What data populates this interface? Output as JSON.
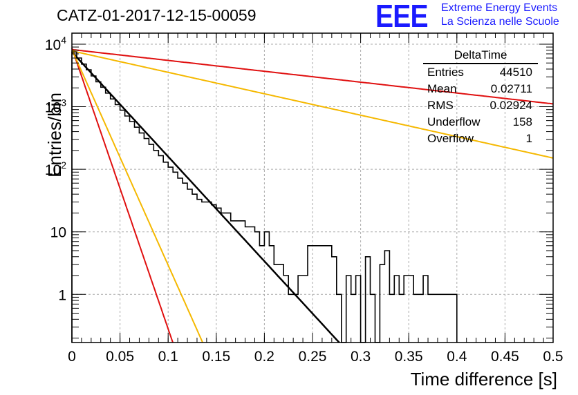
{
  "title": "CATZ-01-2017-12-15-00059",
  "logo": {
    "mark": "EEE",
    "line1": "Extreme Energy Events",
    "line2": "La Scienza nelle Scuole",
    "color": "#1a1aff"
  },
  "stats_box": {
    "name": "DeltaTime",
    "rows": [
      {
        "label": "Entries",
        "value": "44510"
      },
      {
        "label": "Mean",
        "value": "0.02711"
      },
      {
        "label": "RMS",
        "value": "0.02924"
      },
      {
        "label": "Underflow",
        "value": "158"
      },
      {
        "label": "Overflow",
        "value": "1"
      }
    ]
  },
  "chart_data": {
    "type": "line",
    "title": "CATZ-01-2017-12-15-00059",
    "xlabel": "Time difference [s]",
    "ylabel": "Entries/bin",
    "xlim": [
      0,
      0.5
    ],
    "ylim": [
      0.17,
      15000
    ],
    "yscale": "log",
    "grid": true,
    "x_ticks": [
      "0",
      "0.05",
      "0.1",
      "0.15",
      "0.2",
      "0.25",
      "0.3",
      "0.35",
      "0.4",
      "0.45",
      "0.5"
    ],
    "y_ticks": [
      {
        "value": 1,
        "base": "1",
        "exp": ""
      },
      {
        "value": 10,
        "base": "10",
        "exp": ""
      },
      {
        "value": 100,
        "base": "10",
        "exp": "2"
      },
      {
        "value": 1000,
        "base": "10",
        "exp": "3"
      },
      {
        "value": 10000,
        "base": "10",
        "exp": "4"
      }
    ],
    "histogram": {
      "name": "DeltaTime",
      "bin_width": 0.005,
      "x_start": 0,
      "color": "#000000",
      "counts": [
        7500,
        6000,
        4800,
        3900,
        3100,
        2500,
        2050,
        1650,
        1330,
        1080,
        880,
        710,
        580,
        470,
        380,
        310,
        250,
        200,
        165,
        130,
        108,
        90,
        72,
        60,
        48,
        40,
        33,
        30,
        30,
        27,
        24,
        20,
        20,
        15,
        15,
        15,
        12,
        12,
        10,
        6,
        10,
        6,
        3,
        3,
        2,
        1,
        1,
        2,
        2,
        6,
        6,
        6,
        6,
        6,
        4,
        1,
        0,
        2,
        1,
        2,
        0,
        4,
        1,
        0,
        3,
        5,
        1,
        2,
        1,
        2,
        2,
        1,
        1,
        2,
        1,
        1,
        1,
        1,
        1,
        1
      ]
    },
    "series": [
      {
        "name": "",
        "color": "#000000",
        "a": 7500,
        "b": 0.02597
      },
      {
        "name": "",
        "color": "#e01010",
        "a": 8700,
        "b": 0.00967
      },
      {
        "name": "",
        "color": "#f5b800",
        "a": 8200,
        "b": 0.0126
      },
      {
        "name": "",
        "color": "#e01010",
        "a": 8200,
        "b": 0.25
      },
      {
        "name": "",
        "color": "#f5b800",
        "a": 7800,
        "b": 0.1268
      }
    ]
  }
}
